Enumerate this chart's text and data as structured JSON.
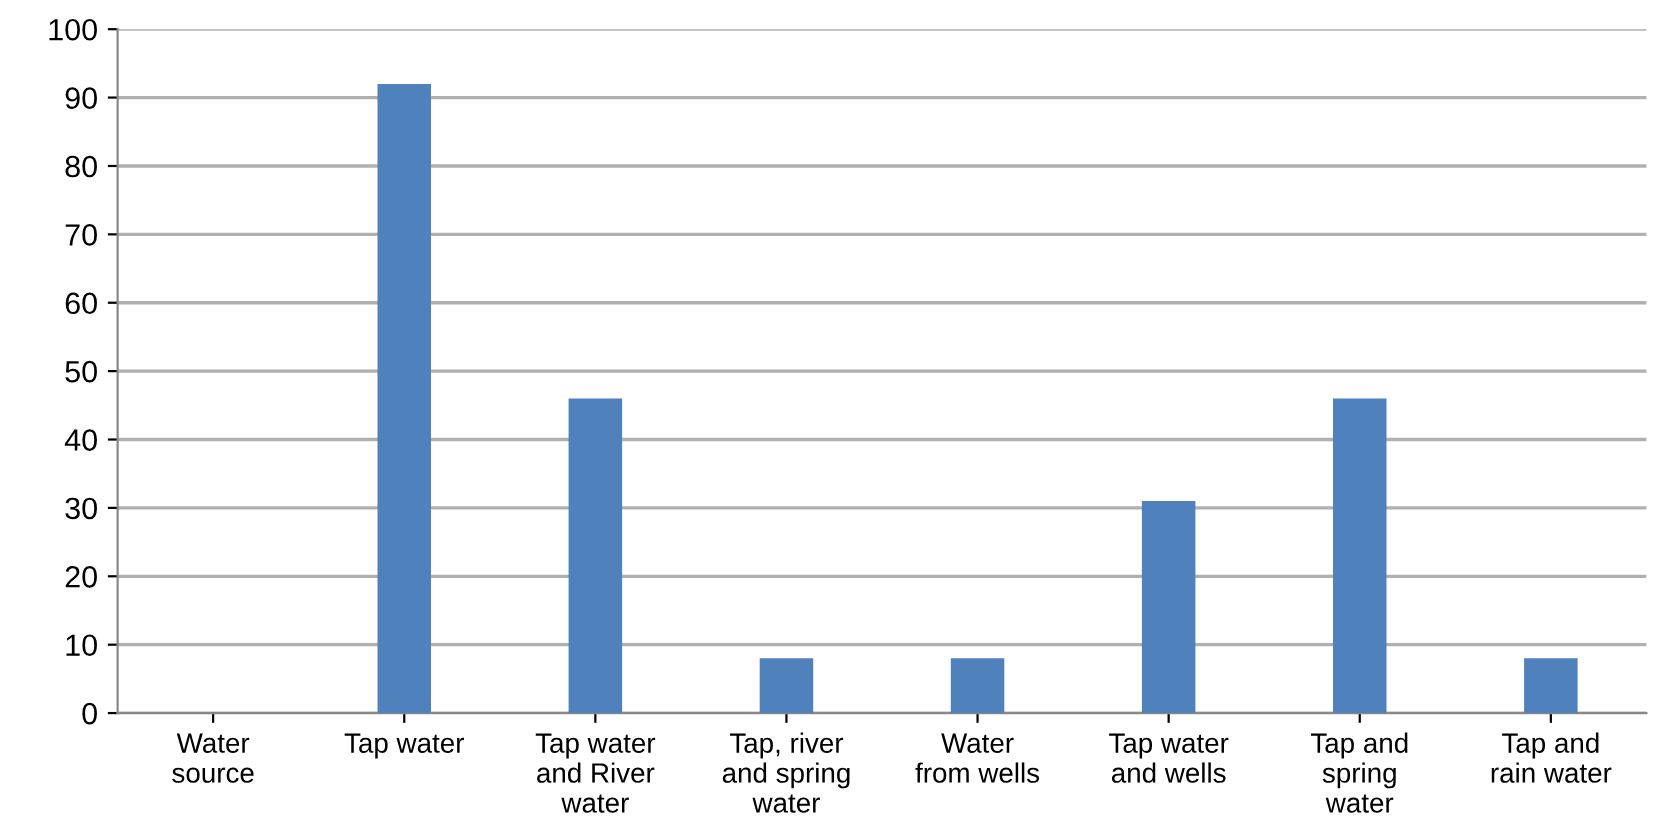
{
  "chart_data": {
    "type": "bar",
    "categories": [
      "Water\nsource",
      "Tap water",
      "Tap water\nand River\nwater",
      "Tap, river\nand spring\nwater",
      "Water\nfrom wells",
      "Tap water\nand wells",
      "Tap and\nspring\nwater",
      "Tap and\nrain water"
    ],
    "values": [
      0,
      92,
      46,
      8,
      8,
      31,
      46,
      8
    ],
    "color": "#4f81bd",
    "ylim": [
      0,
      100
    ],
    "yticks": [
      0,
      10,
      20,
      30,
      40,
      50,
      60,
      70,
      80,
      90,
      100
    ],
    "grid": "y"
  }
}
